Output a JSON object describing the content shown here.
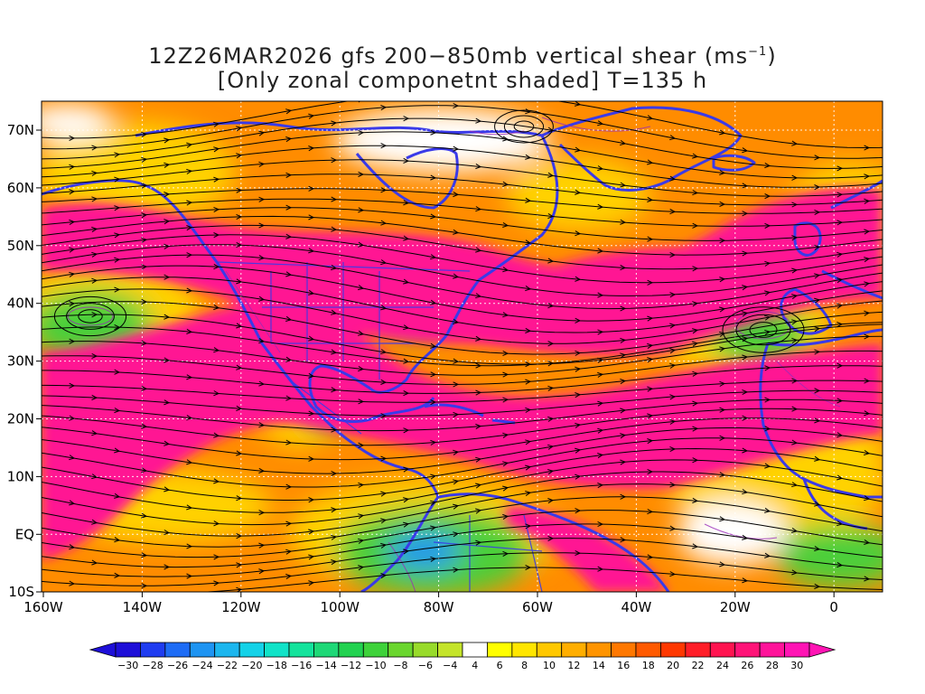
{
  "title": {
    "line1_prefix": "12Z26MAR2026 gfs 200−850mb vertical shear (ms",
    "line1_sup": "−1",
    "line1_suffix": ")",
    "line2": "[Only zonal componetnt shaded] T=135 h"
  },
  "axes": {
    "lat_labels": [
      "70N",
      "60N",
      "50N",
      "40N",
      "30N",
      "20N",
      "10N",
      "EQ",
      "10S"
    ],
    "lon_labels": [
      "160W",
      "140W",
      "120W",
      "100W",
      "80W",
      "60W",
      "40W",
      "20W",
      "0"
    ]
  },
  "colorbar": {
    "labels": [
      "−30",
      "−28",
      "−26",
      "−24",
      "−22",
      "−20",
      "−18",
      "−16",
      "−14",
      "−12",
      "−10",
      "−8",
      "−6",
      "−4",
      "4",
      "6",
      "8",
      "10",
      "12",
      "14",
      "16",
      "18",
      "20",
      "22",
      "24",
      "26",
      "28",
      "30"
    ],
    "colors": [
      "#1e0fd8",
      "#1f3cf0",
      "#1e6cf5",
      "#1e94f2",
      "#1cb6ee",
      "#14d2e8",
      "#10e3c8",
      "#14e39c",
      "#1ed877",
      "#22d250",
      "#3ed23a",
      "#6ad62e",
      "#98db2a",
      "#c4e42a",
      "#ffffff",
      "#ffff00",
      "#ffe600",
      "#ffc800",
      "#ffae00",
      "#ff9400",
      "#ff7800",
      "#ff5a00",
      "#ff3800",
      "#ff1e28",
      "#ff1450",
      "#ff1478",
      "#ff149a",
      "#ff14b4"
    ],
    "under_color": "#1e0fd8",
    "over_color": "#ff14b4"
  },
  "map_colors": {
    "shear_band": "#ff1493",
    "band_edge": "#ff4a3a",
    "orange": "#ff8c00",
    "yellow": "#ffd200",
    "green": "#4ccf3a",
    "coast": "#3a3ae8",
    "streamline": "#000000",
    "grid": "#ffffff"
  }
}
